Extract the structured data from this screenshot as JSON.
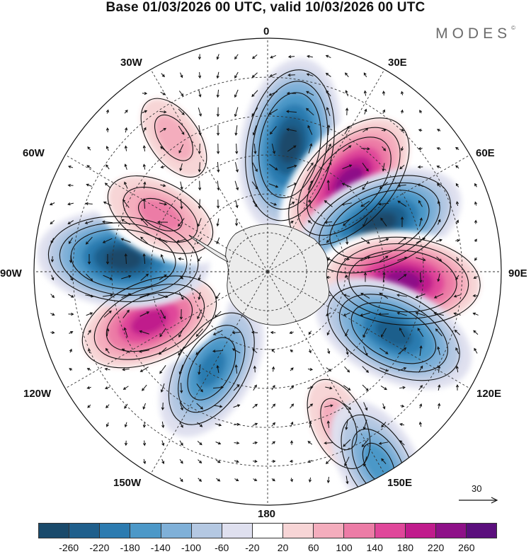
{
  "title": "Base 01/03/2026 00 UTC, valid 10/03/2026 00 UTC",
  "brand": "MODES",
  "brand_mark": "©",
  "longitude_labels": {
    "lon_0": "0",
    "lon_30e": "30E",
    "lon_60e": "60E",
    "lon_90e": "90E",
    "lon_120e": "120E",
    "lon_150e": "150E",
    "lon_180": "180",
    "lon_150w": "150W",
    "lon_120w": "120W",
    "lon_90w": "90W",
    "lon_60w": "60W",
    "lon_30w": "30W"
  },
  "reference_vector": {
    "value": "30"
  },
  "colorbar": {
    "labels": [
      "-260",
      "-220",
      "-180",
      "-140",
      "-100",
      "-60",
      "-20",
      "20",
      "60",
      "100",
      "140",
      "180",
      "220",
      "260"
    ],
    "colors": [
      "#1a4a6b",
      "#1f5f8c",
      "#2c7bb0",
      "#4c98c8",
      "#7fb0d8",
      "#b4c8e2",
      "#dfe0ef",
      "#ffffff",
      "#f7d5d6",
      "#f4adbd",
      "#ec7ca6",
      "#e0479a",
      "#c01c8c",
      "#8e1188",
      "#5b0f7d"
    ]
  },
  "anomaly_centers": [
    {
      "lon": 10,
      "colat": 0.55,
      "value": -250
    },
    {
      "lon": 42,
      "colat": 0.52,
      "value": 250
    },
    {
      "lon": 67,
      "colat": 0.52,
      "value": -240
    },
    {
      "lon": 94,
      "colat": 0.58,
      "value": 260
    },
    {
      "lon": 116,
      "colat": 0.6,
      "value": -220
    },
    {
      "lon": 155,
      "colat": 0.72,
      "value": 110
    },
    {
      "lon": 150,
      "colat": 0.95,
      "value": -120
    },
    {
      "lon": -150,
      "colat": 0.48,
      "value": -160
    },
    {
      "lon": -113,
      "colat": 0.55,
      "value": 220
    },
    {
      "lon": -85,
      "colat": 0.62,
      "value": -240
    },
    {
      "lon": -62,
      "colat": 0.52,
      "value": 150
    },
    {
      "lon": -35,
      "colat": 0.7,
      "value": 80
    }
  ]
}
